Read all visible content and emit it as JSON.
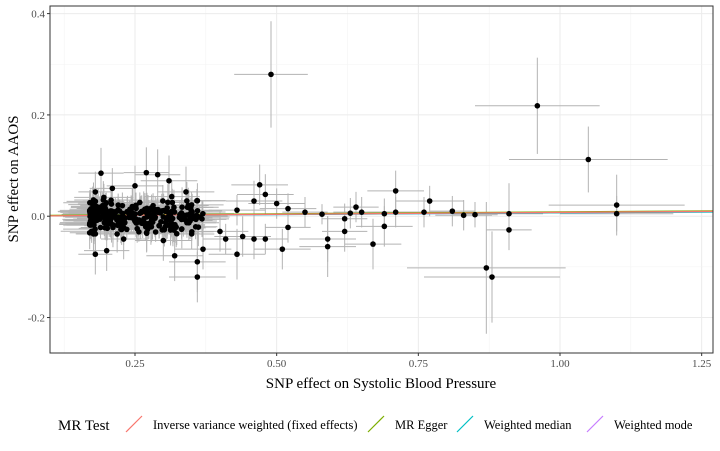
{
  "chart_data": {
    "type": "scatter",
    "xlabel": "SNP effect on Systolic Blood Pressure",
    "ylabel": "SNP effect on AAOS",
    "xlim": [
      0.1,
      1.27
    ],
    "ylim": [
      -0.27,
      0.415
    ],
    "x_ticks": [
      0.25,
      0.5,
      0.75,
      1.0,
      1.25
    ],
    "x_tick_labels": [
      "0.25",
      "0.50",
      "0.75",
      "1.00",
      "1.25"
    ],
    "y_ticks": [
      -0.2,
      0.0,
      0.2,
      0.4
    ],
    "y_tick_labels": [
      "-0.2",
      "0.0",
      "0.2",
      "0.4"
    ],
    "grid": true,
    "legend_position": "bottom",
    "legend_title": "MR Test",
    "series": [
      {
        "name": "Inverse variance weighted (fixed effects)",
        "color": "#F8766D",
        "slope": 0.0075
      },
      {
        "name": "MR Egger",
        "color": "#7CAE00",
        "intercept": 0.001,
        "slope": 0.0075
      },
      {
        "name": "Weighted median",
        "color": "#00BFC4",
        "slope": 0.0067
      },
      {
        "name": "Weighted mode",
        "color": "#C77CFF",
        "slope": 0.0068
      }
    ],
    "points": [
      {
        "x": 0.49,
        "y": 0.28,
        "xse": 0.065,
        "yse": 0.105
      },
      {
        "x": 0.96,
        "y": 0.218,
        "xse": 0.11,
        "yse": 0.095
      },
      {
        "x": 1.05,
        "y": 0.112,
        "xse": 0.14,
        "yse": 0.065
      },
      {
        "x": 1.1,
        "y": 0.022,
        "xse": 0.12,
        "yse": 0.06
      },
      {
        "x": 1.1,
        "y": 0.005,
        "xse": 0.1,
        "yse": 0.035
      },
      {
        "x": 0.87,
        "y": -0.102,
        "xse": 0.14,
        "yse": 0.13
      },
      {
        "x": 0.88,
        "y": -0.12,
        "xse": 0.12,
        "yse": 0.09
      },
      {
        "x": 0.91,
        "y": 0.005,
        "xse": 0.06,
        "yse": 0.06
      },
      {
        "x": 0.91,
        "y": -0.027,
        "xse": 0.04,
        "yse": 0.04
      },
      {
        "x": 0.81,
        "y": 0.01,
        "xse": 0.04,
        "yse": 0.03
      },
      {
        "x": 0.83,
        "y": 0.002,
        "xse": 0.05,
        "yse": 0.03
      },
      {
        "x": 0.85,
        "y": 0.003,
        "xse": 0.04,
        "yse": 0.025
      },
      {
        "x": 0.77,
        "y": 0.03,
        "xse": 0.06,
        "yse": 0.03
      },
      {
        "x": 0.76,
        "y": 0.008,
        "xse": 0.05,
        "yse": 0.03
      },
      {
        "x": 0.71,
        "y": 0.05,
        "xse": 0.05,
        "yse": 0.04
      },
      {
        "x": 0.71,
        "y": 0.008,
        "xse": 0.05,
        "yse": 0.03
      },
      {
        "x": 0.69,
        "y": 0.005,
        "xse": 0.05,
        "yse": 0.03
      },
      {
        "x": 0.69,
        "y": -0.02,
        "xse": 0.05,
        "yse": 0.04
      },
      {
        "x": 0.65,
        "y": 0.008,
        "xse": 0.05,
        "yse": 0.03
      },
      {
        "x": 0.64,
        "y": 0.018,
        "xse": 0.04,
        "yse": 0.03
      },
      {
        "x": 0.63,
        "y": 0.006,
        "xse": 0.05,
        "yse": 0.03
      },
      {
        "x": 0.62,
        "y": -0.005,
        "xse": 0.04,
        "yse": 0.03
      },
      {
        "x": 0.67,
        "y": -0.055,
        "xse": 0.05,
        "yse": 0.05
      },
      {
        "x": 0.58,
        "y": 0.004,
        "xse": 0.05,
        "yse": 0.02
      },
      {
        "x": 0.59,
        "y": -0.045,
        "xse": 0.05,
        "yse": 0.045
      },
      {
        "x": 0.59,
        "y": -0.06,
        "xse": 0.05,
        "yse": 0.06
      },
      {
        "x": 0.62,
        "y": -0.03,
        "xse": 0.04,
        "yse": 0.04
      },
      {
        "x": 0.55,
        "y": 0.008,
        "xse": 0.04,
        "yse": 0.03
      },
      {
        "x": 0.52,
        "y": 0.015,
        "xse": 0.05,
        "yse": 0.03
      },
      {
        "x": 0.51,
        "y": -0.065,
        "xse": 0.05,
        "yse": 0.04
      },
      {
        "x": 0.52,
        "y": -0.022,
        "xse": 0.04,
        "yse": 0.03
      },
      {
        "x": 0.5,
        "y": 0.025,
        "xse": 0.05,
        "yse": 0.03
      },
      {
        "x": 0.47,
        "y": 0.062,
        "xse": 0.05,
        "yse": 0.04
      },
      {
        "x": 0.48,
        "y": 0.043,
        "xse": 0.05,
        "yse": 0.04
      },
      {
        "x": 0.46,
        "y": 0.03,
        "xse": 0.05,
        "yse": 0.04
      },
      {
        "x": 0.46,
        "y": -0.045,
        "xse": 0.05,
        "yse": 0.04
      },
      {
        "x": 0.48,
        "y": -0.045,
        "xse": 0.04,
        "yse": 0.03
      },
      {
        "x": 0.44,
        "y": -0.04,
        "xse": 0.05,
        "yse": 0.04
      },
      {
        "x": 0.43,
        "y": -0.075,
        "xse": 0.05,
        "yse": 0.05
      },
      {
        "x": 0.43,
        "y": 0.012,
        "xse": 0.05,
        "yse": 0.03
      },
      {
        "x": 0.41,
        "y": -0.045,
        "xse": 0.04,
        "yse": 0.03
      },
      {
        "x": 0.4,
        "y": -0.03,
        "xse": 0.05,
        "yse": 0.04
      },
      {
        "x": 0.37,
        "y": -0.065,
        "xse": 0.05,
        "yse": 0.04
      },
      {
        "x": 0.36,
        "y": -0.09,
        "xse": 0.05,
        "yse": 0.06
      },
      {
        "x": 0.36,
        "y": -0.12,
        "xse": 0.05,
        "yse": 0.05
      },
      {
        "x": 0.35,
        "y": -0.035,
        "xse": 0.04,
        "yse": 0.03
      },
      {
        "x": 0.32,
        "y": -0.078,
        "xse": 0.05,
        "yse": 0.05
      },
      {
        "x": 0.3,
        "y": -0.048,
        "xse": 0.05,
        "yse": 0.04
      },
      {
        "x": 0.34,
        "y": 0.048,
        "xse": 0.05,
        "yse": 0.05
      },
      {
        "x": 0.31,
        "y": 0.07,
        "xse": 0.05,
        "yse": 0.05
      },
      {
        "x": 0.27,
        "y": 0.086,
        "xse": 0.04,
        "yse": 0.05
      },
      {
        "x": 0.29,
        "y": 0.082,
        "xse": 0.04,
        "yse": 0.05
      },
      {
        "x": 0.25,
        "y": 0.06,
        "xse": 0.05,
        "yse": 0.04
      },
      {
        "x": 0.21,
        "y": 0.055,
        "xse": 0.04,
        "yse": 0.04
      },
      {
        "x": 0.18,
        "y": 0.048,
        "xse": 0.03,
        "yse": 0.04
      },
      {
        "x": 0.19,
        "y": 0.085,
        "xse": 0.04,
        "yse": 0.05
      },
      {
        "x": 0.18,
        "y": -0.075,
        "xse": 0.03,
        "yse": 0.04
      },
      {
        "x": 0.2,
        "y": -0.068,
        "xse": 0.04,
        "yse": 0.04
      },
      {
        "x": 0.23,
        "y": -0.045,
        "xse": 0.04,
        "yse": 0.04
      }
    ]
  }
}
